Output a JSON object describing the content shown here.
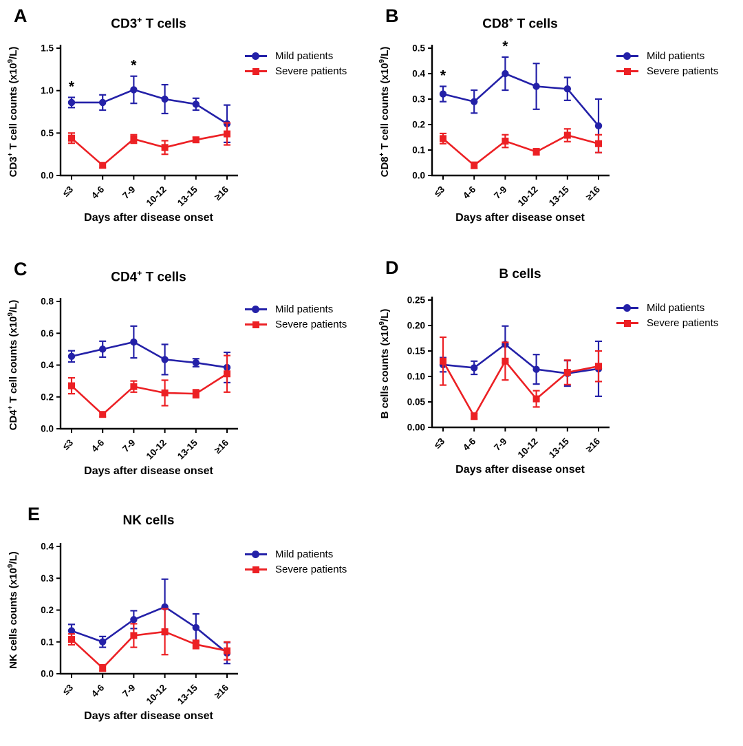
{
  "figure": {
    "background": "#ffffff",
    "x_axis_label": "Days after disease onset",
    "categories": [
      "≤3",
      "4-6",
      "7-9",
      "10-12",
      "13-15",
      "≥16"
    ],
    "legend": {
      "position": "right-of-plot",
      "items": [
        {
          "label": "Mild patients",
          "color": "#2421A8",
          "marker": "circle"
        },
        {
          "label": "Severe patients",
          "color": "#EC2024",
          "marker": "square"
        }
      ]
    }
  },
  "chart_data": [
    {
      "panel_label": "A",
      "type": "line",
      "title": "CD3+ T cells",
      "title_parts": [
        {
          "t": "CD3"
        },
        {
          "t": "+",
          "sup": true
        },
        {
          "t": " T cells"
        }
      ],
      "ylabel": "CD3+ T cell counts (x10 9 /L)",
      "ylabel_parts": [
        {
          "t": "CD3"
        },
        {
          "t": "+",
          "sup": true
        },
        {
          "t": " T cell counts (x10"
        },
        {
          "t": "9",
          "sup": true
        },
        {
          "t": "/L)"
        }
      ],
      "xlabel": "Days after disease onset",
      "ylim": [
        0,
        1.5
      ],
      "ytick_values": [
        0,
        0.5,
        1.0,
        1.5
      ],
      "ytick_labels": [
        "0.0",
        "0.5",
        "1.0",
        "1.5"
      ],
      "grid": false,
      "series": [
        {
          "name": "Mild patients",
          "marker": "circle",
          "color": "#2421A8",
          "values": [
            0.86,
            0.86,
            1.01,
            0.9,
            0.84,
            0.61
          ],
          "errors": [
            0.06,
            0.09,
            0.16,
            0.17,
            0.07,
            0.22
          ]
        },
        {
          "name": "Severe patients",
          "marker": "square",
          "color": "#EC2024",
          "values": [
            0.44,
            0.12,
            0.43,
            0.33,
            0.42,
            0.49
          ],
          "errors": [
            0.06,
            0.03,
            0.05,
            0.08,
            0.03,
            0.13
          ]
        }
      ],
      "significance": [
        {
          "index": 0,
          "symbol": "*"
        },
        {
          "index": 2,
          "symbol": "*"
        }
      ]
    },
    {
      "panel_label": "B",
      "type": "line",
      "title": "CD8+ T cells",
      "title_parts": [
        {
          "t": "CD8"
        },
        {
          "t": "+",
          "sup": true
        },
        {
          "t": " T cells"
        }
      ],
      "ylabel": "CD8+ T cell counts (x10 9 /L)",
      "ylabel_parts": [
        {
          "t": "CD8"
        },
        {
          "t": "+",
          "sup": true
        },
        {
          "t": " T cell counts (x10"
        },
        {
          "t": "9",
          "sup": true
        },
        {
          "t": "/L)"
        }
      ],
      "xlabel": "Days after disease onset",
      "ylim": [
        0,
        0.5
      ],
      "ytick_values": [
        0,
        0.1,
        0.2,
        0.3,
        0.4,
        0.5
      ],
      "ytick_labels": [
        "0.0",
        "0.1",
        "0.2",
        "0.3",
        "0.4",
        "0.5"
      ],
      "grid": false,
      "series": [
        {
          "name": "Mild patients",
          "marker": "circle",
          "color": "#2421A8",
          "values": [
            0.32,
            0.29,
            0.4,
            0.35,
            0.34,
            0.195
          ],
          "errors": [
            0.03,
            0.045,
            0.065,
            0.09,
            0.045,
            0.105
          ]
        },
        {
          "name": "Severe patients",
          "marker": "square",
          "color": "#EC2024",
          "values": [
            0.145,
            0.04,
            0.135,
            0.093,
            0.158,
            0.125
          ],
          "errors": [
            0.02,
            0.012,
            0.025,
            0.012,
            0.025,
            0.035
          ]
        }
      ],
      "significance": [
        {
          "index": 0,
          "symbol": "*"
        },
        {
          "index": 2,
          "symbol": "*"
        }
      ]
    },
    {
      "panel_label": "C",
      "type": "line",
      "title": "CD4+ T cells",
      "title_parts": [
        {
          "t": "CD4"
        },
        {
          "t": "+",
          "sup": true
        },
        {
          "t": " T cells"
        }
      ],
      "ylabel": "CD4+ T cell counts (x10 9 /L)",
      "ylabel_parts": [
        {
          "t": "CD4"
        },
        {
          "t": "+",
          "sup": true
        },
        {
          "t": " T cell counts (x10"
        },
        {
          "t": "9",
          "sup": true
        },
        {
          "t": "/L)"
        }
      ],
      "xlabel": "Days after disease onset",
      "ylim": [
        0,
        0.8
      ],
      "ytick_values": [
        0,
        0.2,
        0.4,
        0.6,
        0.8
      ],
      "ytick_labels": [
        "0.0",
        "0.2",
        "0.4",
        "0.6",
        "0.8"
      ],
      "grid": false,
      "series": [
        {
          "name": "Mild patients",
          "marker": "circle",
          "color": "#2421A8",
          "values": [
            0.455,
            0.5,
            0.545,
            0.435,
            0.415,
            0.385
          ],
          "errors": [
            0.035,
            0.05,
            0.1,
            0.095,
            0.025,
            0.095
          ]
        },
        {
          "name": "Severe patients",
          "marker": "square",
          "color": "#EC2024",
          "values": [
            0.27,
            0.09,
            0.265,
            0.225,
            0.22,
            0.345
          ],
          "errors": [
            0.05,
            0.015,
            0.035,
            0.08,
            0.025,
            0.115
          ]
        }
      ],
      "significance": []
    },
    {
      "panel_label": "D",
      "type": "line",
      "title": "B cells",
      "title_parts": [
        {
          "t": "B cells"
        }
      ],
      "ylabel": "B cells counts (x10 9 /L)",
      "ylabel_parts": [
        {
          "t": "B cells counts (x10"
        },
        {
          "t": "9",
          "sup": true
        },
        {
          "t": "/L)"
        }
      ],
      "xlabel": "Days after disease onset",
      "ylim": [
        0,
        0.25
      ],
      "ytick_values": [
        0,
        0.05,
        0.1,
        0.15,
        0.2,
        0.25
      ],
      "ytick_labels": [
        "0.00",
        "0.05",
        "0.10",
        "0.15",
        "0.20",
        "0.25"
      ],
      "grid": false,
      "series": [
        {
          "name": "Mild patients",
          "marker": "circle",
          "color": "#2421A8",
          "values": [
            0.123,
            0.117,
            0.163,
            0.114,
            0.106,
            0.115
          ],
          "errors": [
            0.014,
            0.013,
            0.036,
            0.029,
            0.025,
            0.054
          ]
        },
        {
          "name": "Severe patients",
          "marker": "square",
          "color": "#EC2024",
          "values": [
            0.13,
            0.022,
            0.13,
            0.056,
            0.108,
            0.12
          ],
          "errors": [
            0.047,
            0.006,
            0.037,
            0.016,
            0.024,
            0.03
          ]
        }
      ],
      "significance": []
    },
    {
      "panel_label": "E",
      "type": "line",
      "title": "NK cells",
      "title_parts": [
        {
          "t": "NK cells"
        }
      ],
      "ylabel": "NK cells counts (x10 9 /L)",
      "ylabel_parts": [
        {
          "t": "NK cells counts (x10"
        },
        {
          "t": "9",
          "sup": true
        },
        {
          "t": "/L)"
        }
      ],
      "xlabel": "Days after disease onset",
      "ylim": [
        0,
        0.4
      ],
      "ytick_values": [
        0,
        0.1,
        0.2,
        0.3,
        0.4
      ],
      "ytick_labels": [
        "0.0",
        "0.1",
        "0.2",
        "0.3",
        "0.4"
      ],
      "grid": false,
      "series": [
        {
          "name": "Mild patients",
          "marker": "circle",
          "color": "#2421A8",
          "values": [
            0.135,
            0.1,
            0.17,
            0.21,
            0.145,
            0.065
          ],
          "errors": [
            0.02,
            0.017,
            0.028,
            0.087,
            0.043,
            0.033
          ]
        },
        {
          "name": "Severe patients",
          "marker": "square",
          "color": "#EC2024",
          "values": [
            0.108,
            0.018,
            0.12,
            0.132,
            0.092,
            0.072
          ],
          "errors": [
            0.017,
            0.01,
            0.037,
            0.072,
            0.013,
            0.028
          ]
        }
      ],
      "significance": []
    }
  ]
}
